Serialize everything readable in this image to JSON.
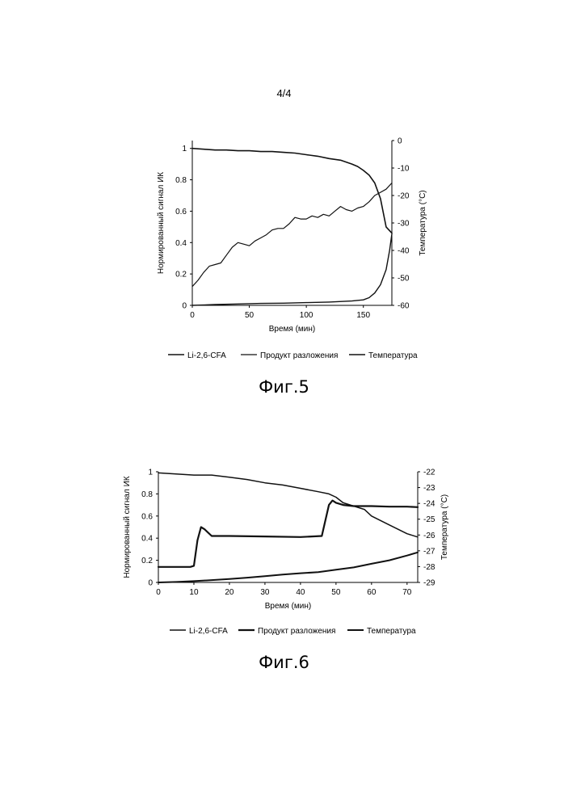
{
  "page_number": "4/4",
  "figures": [
    {
      "caption": "Фиг.5",
      "chart_data": {
        "type": "line",
        "title": "",
        "xlabel": "Время (мин)",
        "ylabel": "Нормированный сигнал ИК",
        "y2label": "Температура (°C)",
        "xlim": [
          0,
          175
        ],
        "ylim": [
          0,
          1.05
        ],
        "y2lim": [
          -60,
          0
        ],
        "xticks": [
          "0",
          "50",
          "100",
          "150"
        ],
        "yticks": [
          "0",
          "0.2",
          "0.4",
          "0.6",
          "0.8",
          "1"
        ],
        "y2ticks": [
          "0",
          "-10",
          "-20",
          "-30",
          "-40",
          "-50",
          "-60"
        ],
        "legend": [
          "Li-2,6-CFA",
          "Продукт разложения",
          "Температура"
        ],
        "legend_position": "bottom",
        "series": [
          {
            "name": "Li-2,6-CFA",
            "axis": "left",
            "x": [
              0,
              10,
              20,
              30,
              40,
              50,
              60,
              70,
              80,
              90,
              100,
              110,
              120,
              130,
              140,
              145,
              150,
              155,
              160,
              165,
              170,
              175
            ],
            "y": [
              1.0,
              0.995,
              0.99,
              0.99,
              0.985,
              0.985,
              0.98,
              0.98,
              0.975,
              0.97,
              0.96,
              0.95,
              0.935,
              0.925,
              0.9,
              0.885,
              0.86,
              0.83,
              0.78,
              0.68,
              0.5,
              0.46
            ]
          },
          {
            "name": "Продукт разложения",
            "axis": "left",
            "x": [
              0,
              5,
              10,
              15,
              20,
              25,
              30,
              35,
              40,
              45,
              50,
              55,
              60,
              65,
              70,
              75,
              80,
              85,
              90,
              95,
              100,
              105,
              110,
              115,
              120,
              125,
              130,
              135,
              140,
              145,
              150,
              155,
              160,
              165,
              170,
              175
            ],
            "y": [
              0.12,
              0.16,
              0.21,
              0.25,
              0.26,
              0.27,
              0.32,
              0.37,
              0.4,
              0.39,
              0.38,
              0.41,
              0.43,
              0.45,
              0.48,
              0.49,
              0.49,
              0.52,
              0.56,
              0.55,
              0.55,
              0.57,
              0.56,
              0.58,
              0.57,
              0.6,
              0.63,
              0.61,
              0.6,
              0.62,
              0.63,
              0.66,
              0.7,
              0.72,
              0.74,
              0.78
            ]
          },
          {
            "name": "Температура",
            "axis": "right",
            "x": [
              0,
              20,
              40,
              60,
              80,
              100,
              120,
              140,
              150,
              155,
              160,
              165,
              170,
              173,
              175
            ],
            "y": [
              -60,
              -59.7,
              -59.5,
              -59.3,
              -59.2,
              -59.0,
              -58.8,
              -58.4,
              -58.0,
              -57.2,
              -55.5,
              -52.5,
              -47,
              -40,
              -34
            ]
          }
        ]
      }
    },
    {
      "caption": "Фиг.6",
      "chart_data": {
        "type": "line",
        "title": "",
        "xlabel": "Время (мин)",
        "ylabel": "Нормированный сигнал ИК",
        "y2label": "Температура (°C)",
        "xlim": [
          0,
          73
        ],
        "ylim": [
          0,
          1
        ],
        "y2lim": [
          -29,
          -22
        ],
        "xticks": [
          "0",
          "10",
          "20",
          "30",
          "40",
          "50",
          "60",
          "70"
        ],
        "yticks": [
          "0",
          "0.2",
          "0.4",
          "0.6",
          "0.8",
          "1"
        ],
        "y2ticks": [
          "-22",
          "-23",
          "-24",
          "-25",
          "-26",
          "-27",
          "-28",
          "-29"
        ],
        "legend": [
          "Li-2,6-CFA",
          "Продукт разложения",
          "Температура"
        ],
        "legend_position": "bottom",
        "series": [
          {
            "name": "Li-2,6-CFA",
            "axis": "left",
            "x": [
              0,
              5,
              10,
              15,
              20,
              25,
              30,
              35,
              40,
              45,
              48,
              50,
              52,
              55,
              58,
              60,
              65,
              70,
              73
            ],
            "y": [
              0.99,
              0.98,
              0.97,
              0.97,
              0.95,
              0.93,
              0.9,
              0.88,
              0.85,
              0.82,
              0.8,
              0.77,
              0.72,
              0.69,
              0.66,
              0.6,
              0.52,
              0.44,
              0.41
            ]
          },
          {
            "name": "Продукт разложения",
            "axis": "left",
            "x": [
              0,
              9,
              10,
              11,
              12,
              13,
              15,
              20,
              30,
              40,
              46,
              47,
              48,
              49,
              50,
              52,
              55,
              60,
              65,
              70,
              73
            ],
            "y": [
              0.14,
              0.14,
              0.15,
              0.38,
              0.5,
              0.48,
              0.42,
              0.42,
              0.415,
              0.41,
              0.42,
              0.56,
              0.7,
              0.74,
              0.72,
              0.7,
              0.69,
              0.69,
              0.685,
              0.685,
              0.68
            ]
          },
          {
            "name": "Температура",
            "axis": "right",
            "x": [
              0,
              5,
              10,
              15,
              20,
              25,
              30,
              35,
              40,
              45,
              50,
              55,
              60,
              65,
              70,
              73
            ],
            "y": [
              -29,
              -28.97,
              -28.92,
              -28.85,
              -28.78,
              -28.7,
              -28.6,
              -28.5,
              -28.42,
              -28.35,
              -28.2,
              -28.05,
              -27.82,
              -27.6,
              -27.3,
              -27.1
            ]
          }
        ]
      }
    }
  ]
}
